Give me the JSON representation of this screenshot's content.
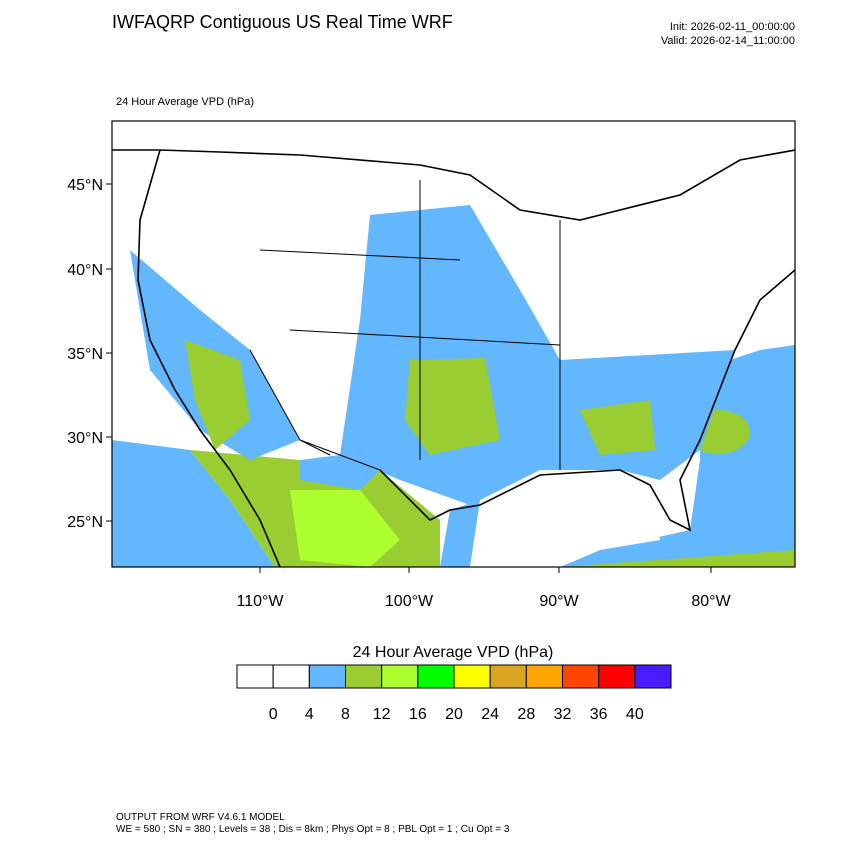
{
  "header": {
    "title": "IWFAQRP Contiguous US Real Time WRF",
    "init": "Init: 2026-02-11_00:00:00",
    "valid": "Valid: 2026-02-14_11:00:00"
  },
  "map": {
    "subtitle": "24 Hour Average VPD   (hPa)",
    "lat_labels": [
      "45°N",
      "40°N",
      "35°N",
      "30°N",
      "25°N"
    ],
    "lon_labels": [
      "110°W",
      "100°W",
      "90°W",
      "80°W"
    ]
  },
  "colorbar": {
    "title": "24 Hour Average VPD  (hPa)",
    "colors": [
      "#ffffff",
      "#ffffff",
      "#62b7ff",
      "#9acd32",
      "#adff2f",
      "#00ff00",
      "#ffff00",
      "#daa520",
      "#ffa500",
      "#ff4500",
      "#ff0000",
      "#4b1bff"
    ],
    "labels": [
      0,
      4,
      8,
      12,
      16,
      20,
      24,
      28,
      32,
      36,
      40
    ]
  },
  "footer": {
    "line1": "OUTPUT FROM WRF V4.6.1 MODEL",
    "line2": "WE = 580 ; SN = 380 ; Levels = 38 ; Dis = 8km ; Phys Opt = 8 ; PBL Opt = 1 ; Cu Opt = 3"
  }
}
